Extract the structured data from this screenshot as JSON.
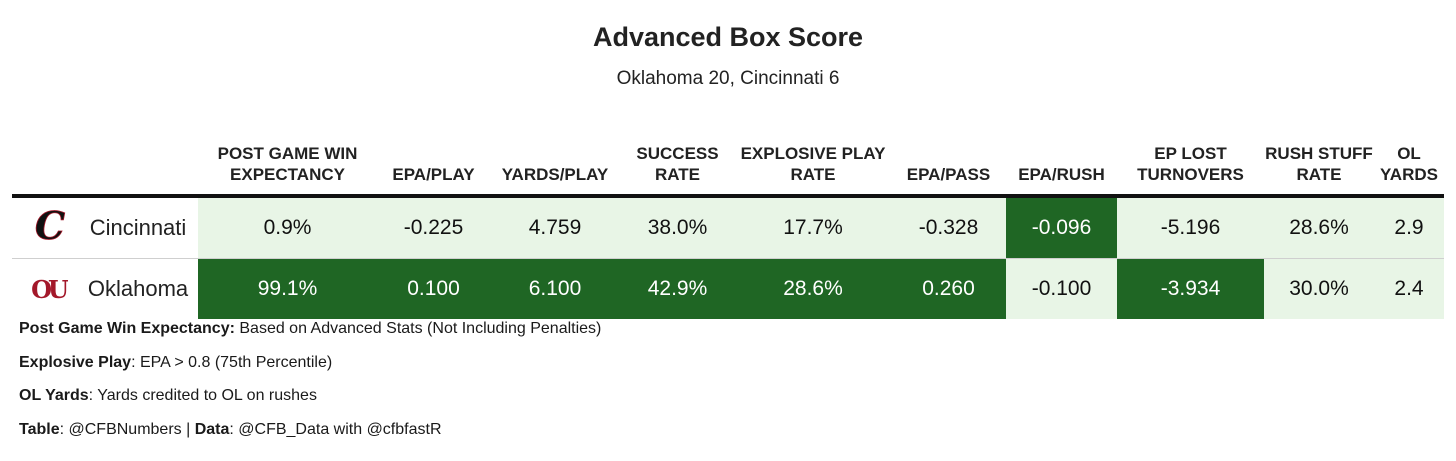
{
  "title": "Advanced Box Score",
  "subtitle": "Oklahoma 20, Cincinnati 6",
  "chart_data": {
    "type": "table",
    "columns": [
      "POST GAME WIN EXPECTANCY",
      "EPA/PLAY",
      "YARDS/PLAY",
      "SUCCESS RATE",
      "EXPLOSIVE PLAY RATE",
      "EPA/PASS",
      "EPA/RUSH",
      "EP LOST TURNOVERS",
      "RUSH STUFF RATE",
      "OL YARDS"
    ],
    "rows": [
      {
        "team": "Cincinnati",
        "logo_text": "C",
        "values": [
          "0.9%",
          "-0.225",
          "4.759",
          "38.0%",
          "17.7%",
          "-0.328",
          "-0.096",
          "-5.196",
          "28.6%",
          "2.9"
        ],
        "highlight": [
          false,
          false,
          false,
          false,
          false,
          false,
          true,
          false,
          false,
          false
        ]
      },
      {
        "team": "Oklahoma",
        "logo_text": "OU",
        "values": [
          "99.1%",
          "0.100",
          "6.100",
          "42.9%",
          "28.6%",
          "0.260",
          "-0.100",
          "-3.934",
          "30.0%",
          "2.4"
        ],
        "highlight": [
          true,
          true,
          true,
          true,
          true,
          true,
          false,
          true,
          false,
          false
        ]
      }
    ],
    "colors": {
      "highlight": "#1f6624",
      "light": "#e8f5e6",
      "white": "#ffffff",
      "cincinnati": "#111111",
      "oklahoma": "#a3182a"
    }
  },
  "notes": [
    {
      "label": "Post Game Win Expectancy:",
      "text": " Based on Advanced Stats (Not Including Penalties)"
    },
    {
      "label": "Explosive Play",
      "text": ": EPA > 0.8 (75th Percentile)"
    },
    {
      "label": "OL Yards",
      "text": ": Yards credited to OL on rushes"
    }
  ],
  "credit": {
    "table_label": "Table",
    "table_text": ": @CFBNumbers | ",
    "data_label": "Data",
    "data_text": ": @CFB_Data with @cfbfastR"
  }
}
